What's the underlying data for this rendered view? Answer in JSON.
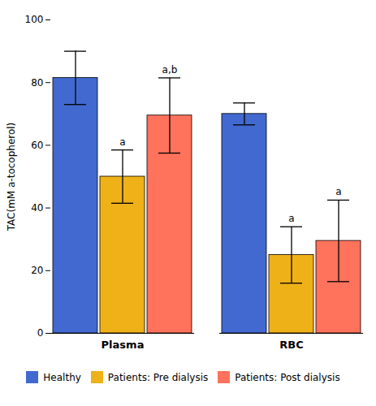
{
  "chart_data": {
    "type": "bar",
    "categories": [
      "Plasma",
      "RBC"
    ],
    "series": [
      {
        "name": "Healthy",
        "values": [
          81.5,
          70.0
        ],
        "errors": [
          8.5,
          3.5
        ],
        "annotations": [
          null,
          null
        ]
      },
      {
        "name": "Patients: Pre dialysis",
        "values": [
          50.0,
          25.0
        ],
        "errors": [
          8.5,
          9.0
        ],
        "annotations": [
          "a",
          "a"
        ]
      },
      {
        "name": "Patients: Post dialysis",
        "values": [
          69.5,
          29.5
        ],
        "errors": [
          12.0,
          13.0
        ],
        "annotations": [
          "a,b",
          "a"
        ]
      }
    ],
    "ylabel": "TAC(mM a-tocopherol)",
    "ylim": [
      0,
      100
    ],
    "yticks": [
      0,
      20,
      40,
      60,
      80,
      100
    ],
    "grid": false,
    "legend": "bottom"
  }
}
